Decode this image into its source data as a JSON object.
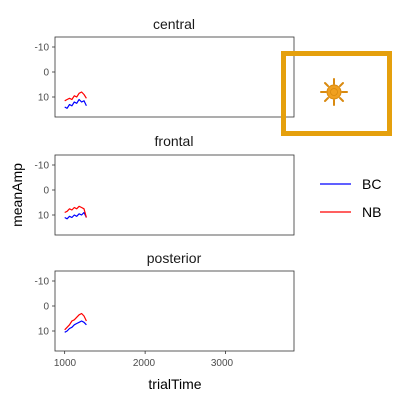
{
  "chart_data": {
    "type": "line",
    "xlabel": "trialTime",
    "ylabel": "meanAmp",
    "xlim": [
      880,
      3850
    ],
    "ylim": [
      18,
      -14
    ],
    "y_reversed": true,
    "xticks": [
      1000,
      2000,
      3000
    ],
    "yticks": [
      -10,
      0,
      10
    ],
    "xtick_labels": [
      "1000",
      "2000",
      "3000"
    ],
    "ytick_labels": [
      "-10",
      "0",
      "10"
    ],
    "grid": false,
    "legend_position": "right",
    "legend": [
      "BC",
      "NB"
    ],
    "colors": {
      "BC": "#0000ff",
      "NB": "#ff0000"
    },
    "panels": [
      {
        "title": "central",
        "series": [
          {
            "name": "BC",
            "x": [
              1000,
              1030,
              1060,
              1090,
              1120,
              1150,
              1180,
              1210,
              1240,
              1270
            ],
            "y": [
              14,
              14.5,
              13,
              13.5,
              12,
              12.5,
              11,
              12,
              11.5,
              13.5
            ]
          },
          {
            "name": "NB",
            "x": [
              1000,
              1030,
              1060,
              1090,
              1120,
              1150,
              1180,
              1210,
              1240,
              1270
            ],
            "y": [
              11.5,
              11,
              10.5,
              11,
              9.5,
              10,
              8.5,
              8,
              9,
              10.5
            ]
          }
        ]
      },
      {
        "title": "frontal",
        "series": [
          {
            "name": "BC",
            "x": [
              1000,
              1030,
              1060,
              1090,
              1120,
              1150,
              1180,
              1210,
              1240,
              1270
            ],
            "y": [
              11,
              11.5,
              10.5,
              11,
              10,
              10.5,
              9.5,
              10,
              9,
              11
            ]
          },
          {
            "name": "NB",
            "x": [
              1000,
              1030,
              1060,
              1090,
              1120,
              1150,
              1180,
              1210,
              1240,
              1270
            ],
            "y": [
              9,
              8.5,
              7.5,
              8,
              7,
              7.5,
              6.5,
              7,
              7.5,
              11
            ]
          }
        ]
      },
      {
        "title": "posterior",
        "series": [
          {
            "name": "BC",
            "x": [
              1000,
              1030,
              1060,
              1090,
              1120,
              1150,
              1180,
              1210,
              1240,
              1270
            ],
            "y": [
              10.5,
              10,
              9,
              8.5,
              7.5,
              7,
              6.5,
              6,
              6.5,
              7.5
            ]
          },
          {
            "name": "NB",
            "x": [
              1000,
              1030,
              1060,
              1090,
              1120,
              1150,
              1180,
              1210,
              1240,
              1270
            ],
            "y": [
              9.5,
              8.5,
              7.5,
              6,
              5.5,
              4.5,
              3.5,
              3.0,
              4.0,
              6.0
            ]
          }
        ]
      }
    ]
  },
  "overlay": {
    "highlight_color": "#e5a00d",
    "icon": "sun-icon",
    "icon_color": "#f0a020"
  }
}
